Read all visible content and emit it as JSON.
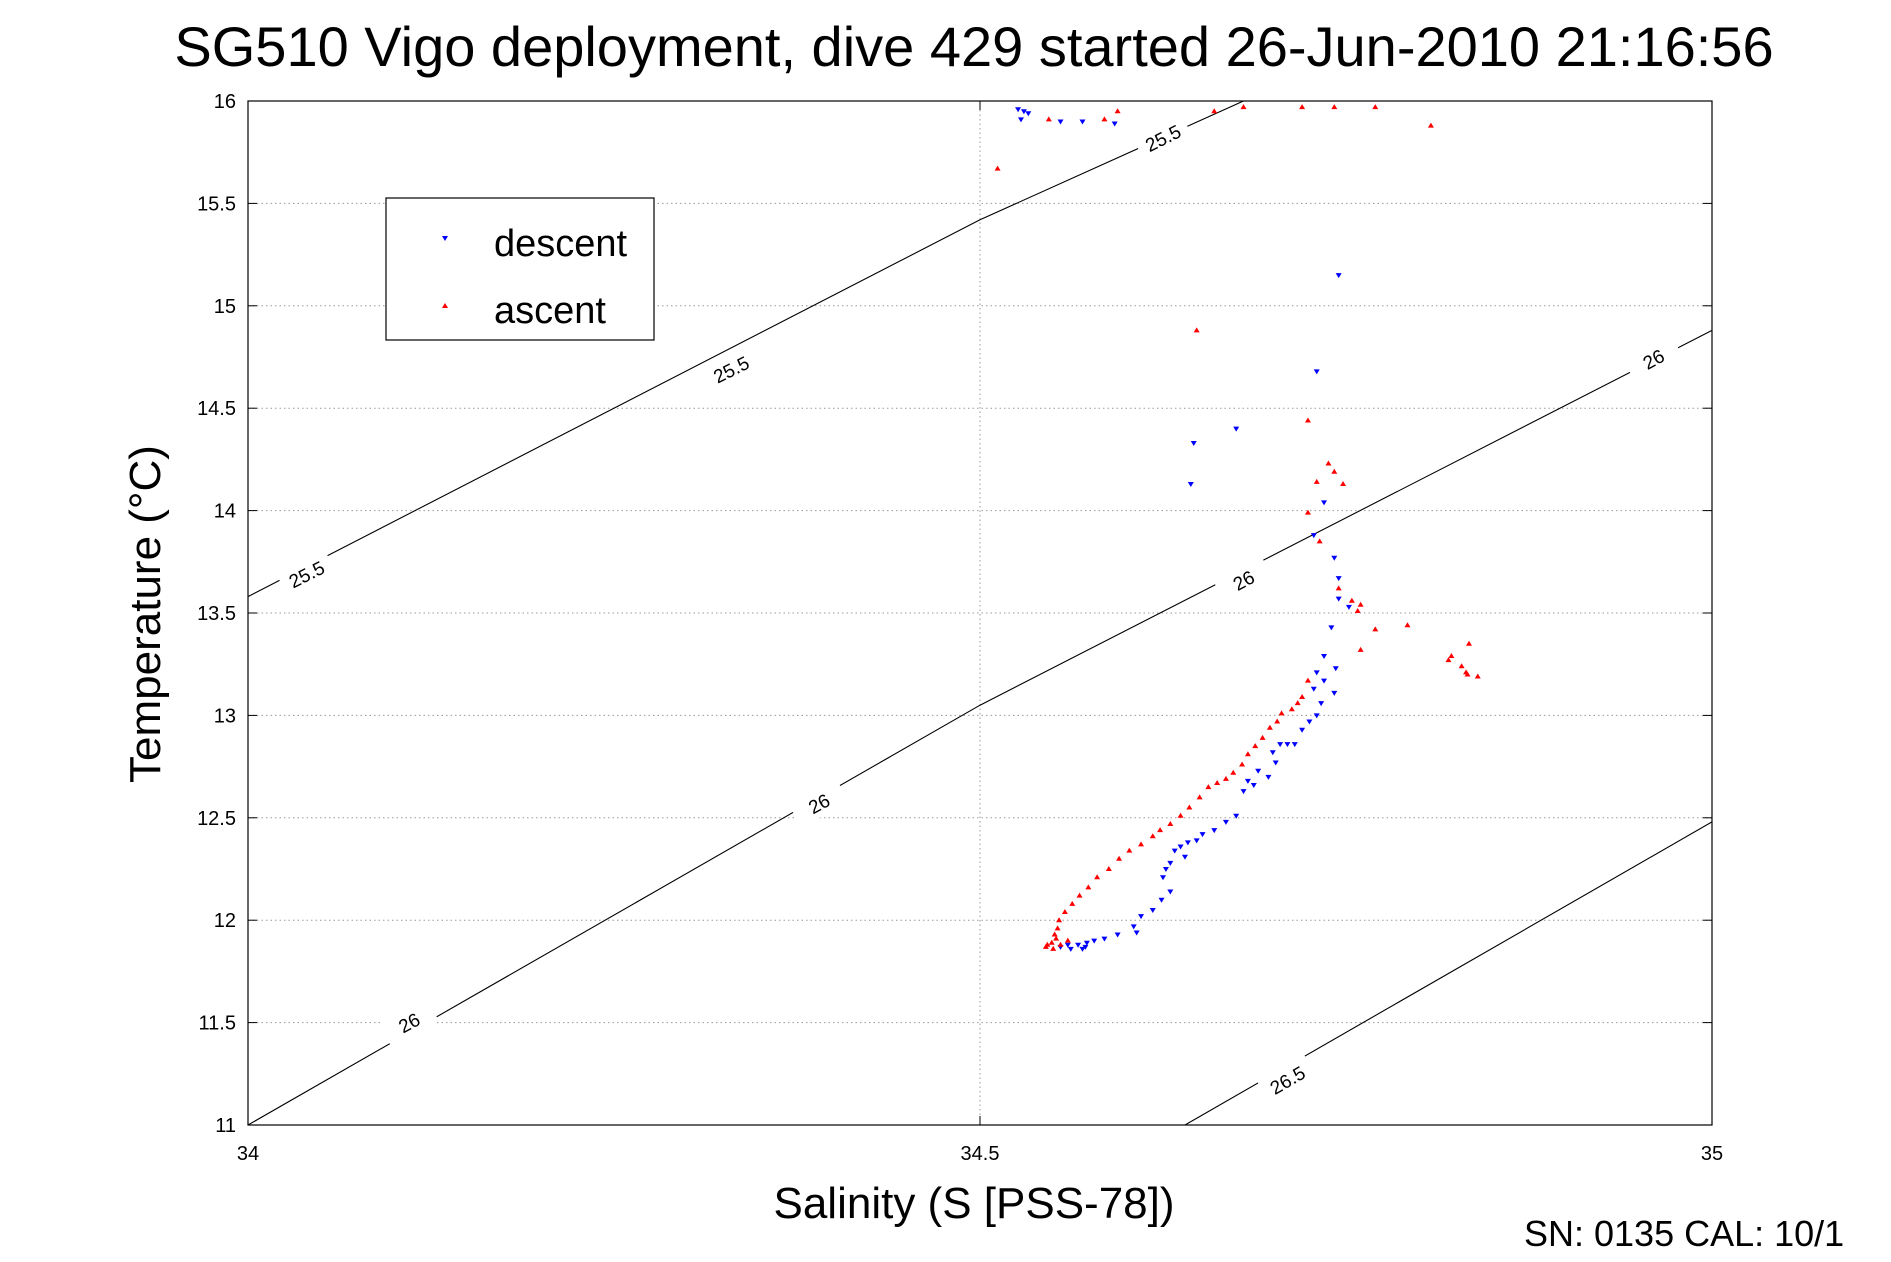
{
  "chart_data": {
    "type": "scatter",
    "title": "SG510 Vigo deployment, dive 429 started 26-Jun-2010 21:16:56",
    "xlabel": "Salinity (S [PSS-78])",
    "ylabel": "Temperature (°C)",
    "xlim": [
      34,
      35
    ],
    "ylim": [
      11,
      16
    ],
    "xticks": [
      "34",
      "34.5",
      "35"
    ],
    "yticks": [
      "11",
      "11.5",
      "12",
      "12.5",
      "13",
      "13.5",
      "14",
      "14.5",
      "15",
      "15.5",
      "16"
    ],
    "grid": true,
    "legend_position": "top-left",
    "footer_text": "SN: 0135  CAL: 10/1",
    "colors": {
      "descent": "#0000ff",
      "ascent": "#ff0000",
      "contour": "#000000"
    },
    "series": [
      {
        "name": "descent",
        "marker": "triangle-down",
        "points": [
          [
            34.526,
            15.96
          ],
          [
            34.53,
            15.95
          ],
          [
            34.533,
            15.94
          ],
          [
            34.528,
            15.91
          ],
          [
            34.555,
            15.9
          ],
          [
            34.57,
            15.9
          ],
          [
            34.592,
            15.89
          ],
          [
            34.745,
            15.15
          ],
          [
            34.73,
            14.68
          ],
          [
            34.675,
            14.4
          ],
          [
            34.646,
            14.33
          ],
          [
            34.644,
            14.13
          ],
          [
            34.735,
            14.04
          ],
          [
            34.728,
            13.88
          ],
          [
            34.742,
            13.77
          ],
          [
            34.745,
            13.67
          ],
          [
            34.745,
            13.57
          ],
          [
            34.752,
            13.53
          ],
          [
            34.74,
            13.43
          ],
          [
            34.735,
            13.29
          ],
          [
            34.743,
            13.23
          ],
          [
            34.73,
            13.21
          ],
          [
            34.735,
            13.17
          ],
          [
            34.728,
            13.13
          ],
          [
            34.742,
            13.11
          ],
          [
            34.733,
            13.06
          ],
          [
            34.73,
            13.0
          ],
          [
            34.725,
            12.97
          ],
          [
            34.72,
            12.93
          ],
          [
            34.715,
            12.86
          ],
          [
            34.71,
            12.86
          ],
          [
            34.705,
            12.86
          ],
          [
            34.7,
            12.82
          ],
          [
            34.702,
            12.77
          ],
          [
            34.69,
            12.73
          ],
          [
            34.697,
            12.7
          ],
          [
            34.683,
            12.68
          ],
          [
            34.687,
            12.66
          ],
          [
            34.68,
            12.63
          ],
          [
            34.675,
            12.51
          ],
          [
            34.668,
            12.48
          ],
          [
            34.66,
            12.44
          ],
          [
            34.652,
            12.42
          ],
          [
            34.648,
            12.39
          ],
          [
            34.642,
            12.38
          ],
          [
            34.637,
            12.36
          ],
          [
            34.633,
            12.34
          ],
          [
            34.64,
            12.31
          ],
          [
            34.63,
            12.28
          ],
          [
            34.627,
            12.25
          ],
          [
            34.625,
            12.21
          ],
          [
            34.63,
            12.14
          ],
          [
            34.624,
            12.1
          ],
          [
            34.618,
            12.05
          ],
          [
            34.61,
            12.02
          ],
          [
            34.605,
            11.97
          ],
          [
            34.607,
            11.94
          ],
          [
            34.594,
            11.93
          ],
          [
            34.585,
            11.91
          ],
          [
            34.578,
            11.9
          ],
          [
            34.573,
            11.89
          ],
          [
            34.567,
            11.88
          ],
          [
            34.57,
            11.86
          ],
          [
            34.562,
            11.86
          ],
          [
            34.56,
            11.88
          ],
          [
            34.555,
            11.87
          ],
          [
            34.572,
            11.87
          ]
        ]
      },
      {
        "name": "ascent",
        "marker": "triangle-up",
        "points": [
          [
            34.512,
            15.67
          ],
          [
            34.547,
            15.91
          ],
          [
            34.585,
            15.91
          ],
          [
            34.594,
            15.95
          ],
          [
            34.66,
            15.95
          ],
          [
            34.68,
            15.97
          ],
          [
            34.72,
            15.97
          ],
          [
            34.742,
            15.97
          ],
          [
            34.77,
            15.97
          ],
          [
            34.808,
            15.88
          ],
          [
            34.648,
            14.88
          ],
          [
            34.724,
            14.44
          ],
          [
            34.738,
            14.23
          ],
          [
            34.742,
            14.19
          ],
          [
            34.73,
            14.14
          ],
          [
            34.748,
            14.13
          ],
          [
            34.724,
            13.99
          ],
          [
            34.732,
            13.85
          ],
          [
            34.745,
            13.62
          ],
          [
            34.754,
            13.56
          ],
          [
            34.76,
            13.54
          ],
          [
            34.758,
            13.51
          ],
          [
            34.77,
            13.42
          ],
          [
            34.76,
            13.32
          ],
          [
            34.834,
            13.35
          ],
          [
            34.822,
            13.29
          ],
          [
            34.829,
            13.24
          ],
          [
            34.832,
            13.21
          ],
          [
            34.833,
            13.2
          ],
          [
            34.84,
            13.19
          ],
          [
            34.82,
            13.27
          ],
          [
            34.792,
            13.44
          ],
          [
            34.724,
            13.17
          ],
          [
            34.72,
            13.09
          ],
          [
            34.717,
            13.06
          ],
          [
            34.713,
            13.03
          ],
          [
            34.706,
            13.01
          ],
          [
            34.703,
            12.97
          ],
          [
            34.698,
            12.94
          ],
          [
            34.693,
            12.89
          ],
          [
            34.688,
            12.85
          ],
          [
            34.683,
            12.81
          ],
          [
            34.679,
            12.76
          ],
          [
            34.673,
            12.72
          ],
          [
            34.668,
            12.69
          ],
          [
            34.662,
            12.67
          ],
          [
            34.656,
            12.65
          ],
          [
            34.65,
            12.6
          ],
          [
            34.643,
            12.55
          ],
          [
            34.637,
            12.51
          ],
          [
            34.63,
            12.47
          ],
          [
            34.623,
            12.44
          ],
          [
            34.618,
            12.41
          ],
          [
            34.61,
            12.37
          ],
          [
            34.602,
            12.34
          ],
          [
            34.595,
            12.3
          ],
          [
            34.588,
            12.25
          ],
          [
            34.58,
            12.21
          ],
          [
            34.574,
            12.16
          ],
          [
            34.568,
            12.12
          ],
          [
            34.563,
            12.08
          ],
          [
            34.558,
            12.04
          ],
          [
            34.554,
            12.0
          ],
          [
            34.553,
            11.96
          ],
          [
            34.551,
            11.93
          ],
          [
            34.552,
            11.91
          ],
          [
            34.549,
            11.89
          ],
          [
            34.546,
            11.88
          ],
          [
            34.55,
            11.86
          ],
          [
            34.545,
            11.87
          ],
          [
            34.555,
            11.88
          ],
          [
            34.56,
            11.9
          ]
        ]
      }
    ],
    "contours": [
      {
        "label": "25.5",
        "points": [
          [
            34,
            13.58
          ],
          [
            34.5,
            15.42
          ],
          [
            34.68,
            16.0
          ]
        ],
        "label_at": [
          [
            34.04,
            13.69
          ],
          [
            34.33,
            14.69
          ],
          [
            34.625,
            15.82
          ]
        ]
      },
      {
        "label": "26",
        "points": [
          [
            34,
            11.0
          ],
          [
            34.5,
            13.05
          ],
          [
            35,
            14.88
          ]
        ],
        "label_at": [
          [
            34.11,
            11.5
          ],
          [
            34.39,
            12.57
          ],
          [
            34.68,
            13.66
          ],
          [
            34.96,
            14.74
          ]
        ]
      },
      {
        "label": "26.5",
        "points": [
          [
            34.64,
            11.0
          ],
          [
            35,
            12.48
          ]
        ],
        "label_at": [
          [
            34.71,
            11.22
          ]
        ]
      }
    ]
  }
}
